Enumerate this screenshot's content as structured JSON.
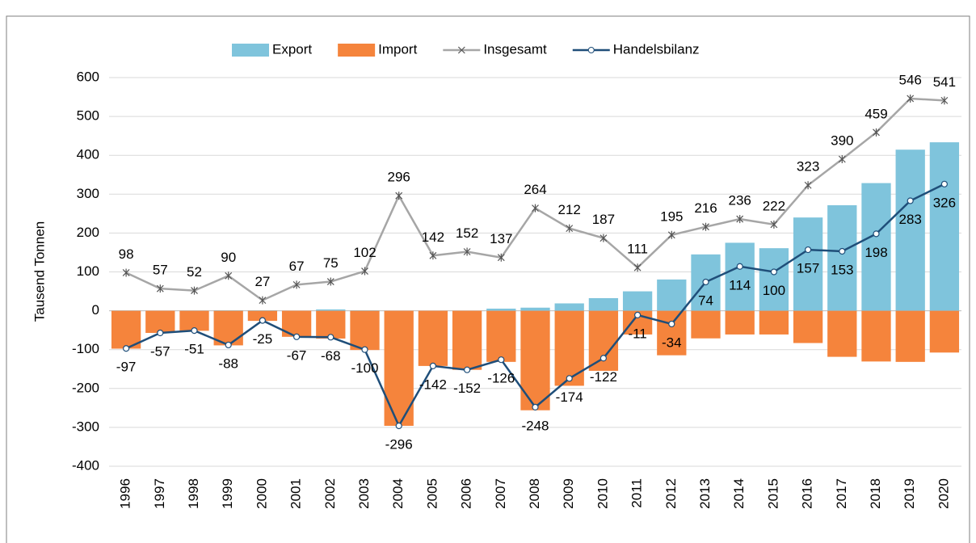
{
  "chart_data": {
    "type": "bar",
    "y_label": "Tausend Tonnen",
    "categories": [
      "1996",
      "1997",
      "1998",
      "1999",
      "2000",
      "2001",
      "2002",
      "2003",
      "2004",
      "2005",
      "2006",
      "2007",
      "2008",
      "2009",
      "2010",
      "2011",
      "2012",
      "2013",
      "2014",
      "2015",
      "2016",
      "2017",
      "2018",
      "2019",
      "2020"
    ],
    "series": [
      {
        "name": "Export",
        "type": "bar",
        "color": "#7fc4dc",
        "values": [
          0.5,
          0,
          0.5,
          1,
          1,
          0,
          3.5,
          1,
          0,
          0,
          0,
          5.5,
          8,
          19,
          32.5,
          50,
          80.5,
          145,
          175,
          161,
          240,
          271.5,
          328.5,
          414.5,
          433.5
        ]
      },
      {
        "name": "Import",
        "type": "bar",
        "color": "#f5843c",
        "values": [
          -97.5,
          -57,
          -51.5,
          -89,
          -26,
          -67,
          -71.5,
          -101,
          -296,
          -142,
          -152,
          -131.5,
          -256,
          -193,
          -154.5,
          -61,
          -114.5,
          -71,
          -61,
          -61,
          -83,
          -118.5,
          -130.5,
          -131.5,
          -107.5
        ]
      },
      {
        "name": "Insgesamt",
        "type": "line",
        "color": "#a6a6a6",
        "values": [
          98,
          57,
          52,
          90,
          27,
          67,
          75,
          102,
          296,
          142,
          152,
          137,
          264,
          212,
          187,
          111,
          195,
          216,
          236,
          222,
          323,
          390,
          459,
          546,
          541
        ]
      },
      {
        "name": "Handelsbilanz",
        "type": "line",
        "color": "#1f4e79",
        "values": [
          -97,
          -57,
          -51,
          -88,
          -25,
          -67,
          -68,
          -100,
          -296,
          -142,
          -152,
          -126,
          -248,
          -174,
          -122,
          -11,
          -34,
          74,
          114,
          100,
          157,
          153,
          198,
          283,
          326
        ]
      }
    ],
    "ylim": [
      -400,
      600
    ],
    "yticks": [
      -400,
      -300,
      -200,
      -100,
      0,
      100,
      200,
      300,
      400,
      500,
      600
    ],
    "grid": true
  }
}
